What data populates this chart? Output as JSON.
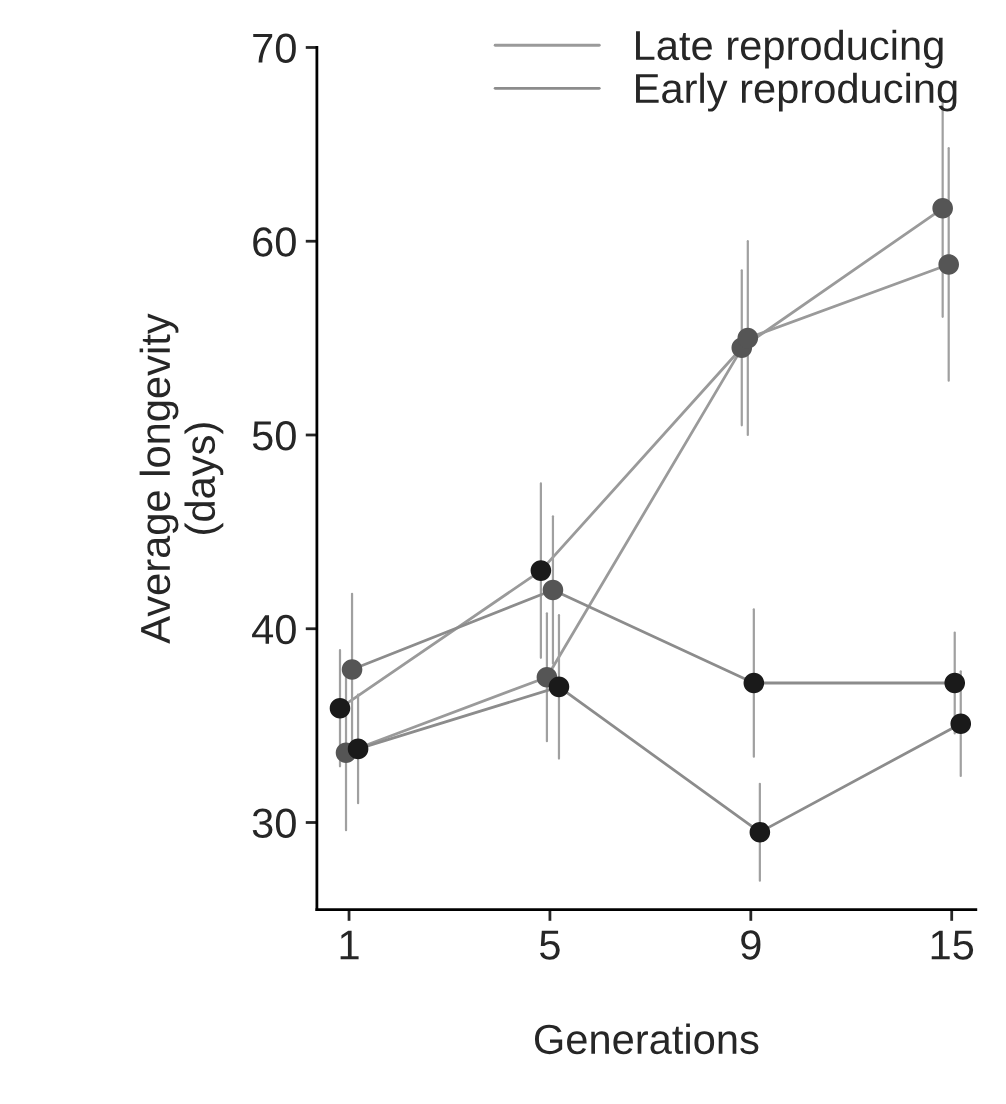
{
  "chart_data": {
    "type": "line",
    "xlabel": "Generations",
    "ylabel": "Average longevity\n(days)",
    "categories": [
      "1",
      "5",
      "9",
      "15"
    ],
    "series": [
      {
        "name": "Late reproducing",
        "color": "#9a9a9a",
        "colors": [
          "#1a1a1a",
          "#1a1a1a",
          "#555555",
          "#555555"
        ],
        "values": [
          35.9,
          43.0,
          54.5,
          61.7
        ],
        "errors": [
          3.0,
          4.5,
          4.0,
          5.6
        ]
      },
      {
        "color": "#9a9a9a",
        "colors": [
          "#555555",
          "#555555",
          "#555555",
          "#555555"
        ],
        "values": [
          33.6,
          37.5,
          55.0,
          58.8
        ],
        "errors": [
          4.0,
          3.3,
          5.0,
          6.0
        ]
      },
      {
        "name": "Early reproducing",
        "color": "#8c8c8c",
        "colors": [
          "#555555",
          "#555555",
          "#1a1a1a",
          "#1a1a1a"
        ],
        "values": [
          37.9,
          42.0,
          37.2,
          37.2
        ],
        "errors": [
          3.9,
          3.8,
          3.8,
          2.6
        ]
      },
      {
        "color": "#8c8c8c",
        "colors": [
          "#1a1a1a",
          "#1a1a1a",
          "#1a1a1a",
          "#1a1a1a"
        ],
        "values": [
          33.8,
          37.0,
          29.5,
          35.1
        ],
        "errors": [
          2.8,
          3.7,
          2.5,
          2.7
        ]
      }
    ],
    "ylim": [
      25.5,
      70
    ],
    "yticks": [
      30,
      40,
      50,
      60,
      70
    ],
    "grid": false,
    "legend": "top right",
    "marker": "circle",
    "line_style": "solid"
  }
}
